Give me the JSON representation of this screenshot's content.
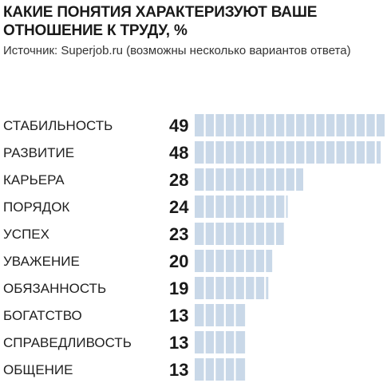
{
  "chart_data": {
    "type": "bar",
    "orientation": "horizontal",
    "title": "КАКИЕ ПОНЯТИЯ ХАРАКТЕРИЗУЮТ ВАШЕ ОТНОШЕНИЕ К ТРУДУ, %",
    "subtitle": "Источник: Superjob.ru (возможны несколько вариантов ответа)",
    "categories": [
      "СТАБИЛЬНОСТЬ",
      "РАЗВИТИЕ",
      "КАРЬЕРА",
      "ПОРЯДОК",
      "УСПЕХ",
      "УВАЖЕНИЕ",
      "ОБЯЗАННОСТЬ",
      "БОГАТСТВО",
      "СПРАВЕДЛИВОСТЬ",
      "ОБЩЕНИЕ"
    ],
    "values": [
      49,
      48,
      28,
      24,
      23,
      20,
      19,
      13,
      13,
      13
    ],
    "value_labels": [
      "49",
      "48",
      "28",
      "24",
      "23",
      "20",
      "19",
      "13",
      "13",
      "13"
    ],
    "xlim": [
      0,
      49
    ],
    "grid": false,
    "legend": "none",
    "colors": {
      "bar": "#c9d8e8",
      "segment_divider": "#ffffff",
      "text": "#1a1a1a"
    }
  }
}
